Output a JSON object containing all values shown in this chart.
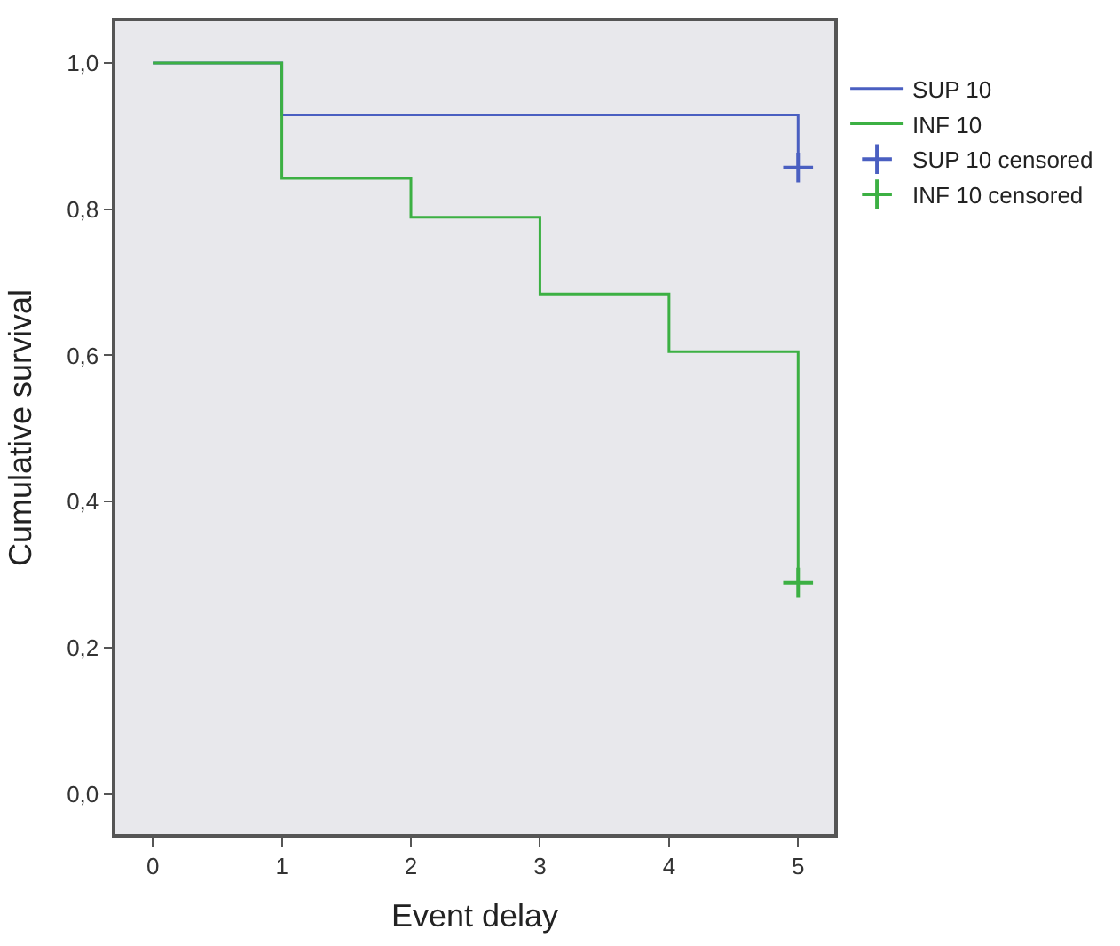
{
  "chart_data": {
    "type": "step",
    "xlabel": "Event delay",
    "ylabel": "Cumulative survival",
    "series": [
      {
        "name": "SUP 10",
        "color": "#4a5fc1",
        "marker": "none",
        "x": [
          0,
          1,
          5
        ],
        "values": [
          1.0,
          0.929,
          0.857
        ]
      },
      {
        "name": "INF 10",
        "color": "#3cb043",
        "marker": "none",
        "x": [
          0,
          1,
          2,
          3,
          4,
          5
        ],
        "values": [
          1.0,
          0.842,
          0.789,
          0.684,
          0.605,
          0.289
        ]
      },
      {
        "name": "SUP 10 censored",
        "color": "#4a5fc1",
        "type": "scatter",
        "marker": "cross",
        "x": [
          5
        ],
        "values": [
          0.857
        ]
      },
      {
        "name": "INF 10 censored",
        "color": "#3cb043",
        "type": "scatter",
        "marker": "cross",
        "x": [
          5
        ],
        "values": [
          0.289
        ]
      }
    ],
    "xlim": [
      -0.29,
      5.28
    ],
    "xticks": [
      0,
      1,
      2,
      3,
      4,
      5
    ],
    "ylim": [
      -0.055,
      1.057
    ],
    "yticks": [
      {
        "value": 0.0,
        "label": "0,0"
      },
      {
        "value": 0.2,
        "label": "0,2"
      },
      {
        "value": 0.4,
        "label": "0,4"
      },
      {
        "value": 0.6,
        "label": "0,6"
      },
      {
        "value": 0.8,
        "label": "0,8"
      },
      {
        "value": 1.0,
        "label": "1,0"
      }
    ],
    "grid": false,
    "legend": "top right"
  }
}
